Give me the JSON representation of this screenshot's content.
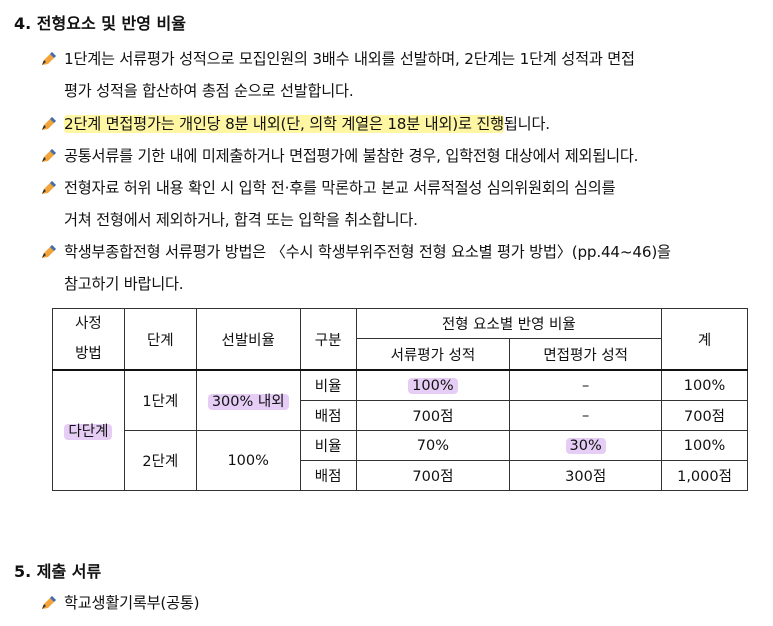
{
  "section4": {
    "title": "4. 전형요소 및 반영 비율",
    "bullets": [
      {
        "lines": [
          "1단계는 서류평가 성적으로 모집인원의 3배수 내외를 선발하며, 2단계는 1단계 성적과 면접",
          "평가 성적을 합산하여 총점 순으로 선발합니다."
        ]
      },
      {
        "highlight": "2단계 면접평가는 개인당 8분 내외(단, 의학 계열은 18분 내외)로 진행",
        "rest": "됩니다."
      },
      {
        "lines": [
          "공통서류를 기한 내에 미제출하거나 면접평가에 불참한 경우, 입학전형 대상에서 제외됩니다."
        ]
      },
      {
        "lines": [
          "전형자료 허위 내용 확인 시 입학 전·후를 막론하고 본교 서류적절성 심의위원회의 심의를",
          "거쳐 전형에서 제외하거나, 합격 또는 입학을 취소합니다."
        ]
      },
      {
        "lines": [
          "학생부종합전형 서류평가 방법은 〈수시 학생부위주전형 전형 요소별 평가 방법〉(pp.44~46)을",
          "참고하기 바랍니다."
        ]
      }
    ]
  },
  "table": {
    "headers": {
      "method": [
        "사정",
        "방법"
      ],
      "stage": "단계",
      "ratio": "선발비율",
      "type": "구분",
      "group": "전형 요소별 반영 비율",
      "doc": "서류평가 성적",
      "interview": "면접평가 성적",
      "total": "계"
    },
    "method": "다단계",
    "stage1": {
      "name": "1단계",
      "ratio": "300% 내외",
      "rows": [
        {
          "type": "비율",
          "doc": "100%",
          "interview": "–",
          "total": "100%"
        },
        {
          "type": "배점",
          "doc": "700점",
          "interview": "–",
          "total": "700점"
        }
      ]
    },
    "stage2": {
      "name": "2단계",
      "ratio": "100%",
      "rows": [
        {
          "type": "비율",
          "doc": "70%",
          "interview": "30%",
          "total": "100%"
        },
        {
          "type": "배점",
          "doc": "700점",
          "interview": "300점",
          "total": "1,000점"
        }
      ]
    }
  },
  "section5": {
    "title": "5. 제출 서류",
    "bullets": [
      {
        "lines": [
          "학교생활기록부(공통)"
        ]
      }
    ]
  },
  "colors": {
    "highlight_yellow": "#fff6a3",
    "highlight_purple": "#e6cdf5",
    "pencil_orange": "#f2a33a",
    "pencil_blue": "#3d6fb6"
  },
  "icons": {
    "bullet": "pencil-icon"
  }
}
